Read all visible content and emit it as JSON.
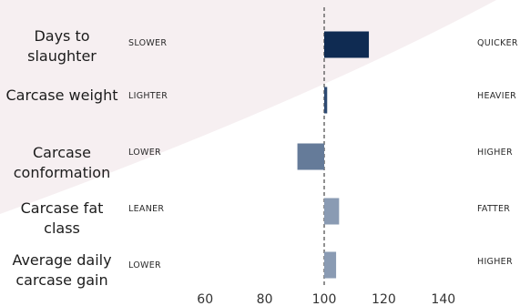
{
  "chart_data": {
    "type": "bar",
    "orientation": "horizontal",
    "reference_value": 100,
    "xlim": [
      42,
      157
    ],
    "xticks": [
      60,
      80,
      100,
      120,
      140
    ],
    "grid": false,
    "categories": [
      "Days to slaughter",
      "Carcase weight",
      "Carcase conformation",
      "Carcase fat class",
      "Average daily carcase gain"
    ],
    "values": [
      115,
      101,
      91,
      105,
      104
    ],
    "low_labels": [
      "SLOWER",
      "LIGHTER",
      "LOWER",
      "LEANER",
      "LOWER"
    ],
    "high_labels": [
      "QUICKER",
      "HEAVIER",
      "HIGHER",
      "FATTER",
      "HIGHER"
    ],
    "bar_colors": [
      "#0f2b52",
      "#2e4a72",
      "#657b99",
      "#8a9bb3",
      "#8a9bb3"
    ]
  },
  "colors": {
    "background": "#ffffff",
    "arc_fill": "#f6eff1",
    "reference_line": "#555555"
  }
}
